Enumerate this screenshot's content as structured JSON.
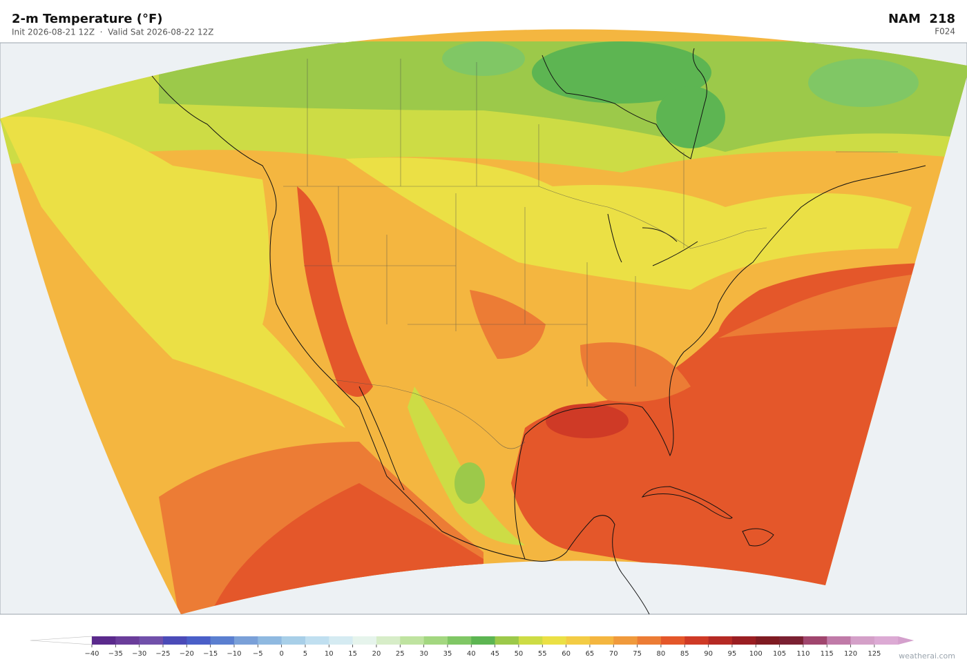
{
  "header": {
    "title": "2-m Temperature  (°F)",
    "subtitle": "Init 2026-08-21 12Z  ·  Valid Sat 2026-08-22 12Z",
    "model": "NAM  218",
    "forecast_hour": "F024"
  },
  "colorbar": {
    "lim": [
      -45,
      135
    ],
    "ticks": [
      {
        "value": -40,
        "label": "−40"
      },
      {
        "value": -35,
        "label": "−35"
      },
      {
        "value": -30,
        "label": "−30"
      },
      {
        "value": -25,
        "label": "−25"
      },
      {
        "value": -20,
        "label": "−20"
      },
      {
        "value": -15,
        "label": "−15"
      },
      {
        "value": -10,
        "label": "−10"
      },
      {
        "value": -5,
        "label": "−5"
      },
      0,
      5,
      10,
      15,
      20,
      25,
      30,
      35,
      40,
      45,
      50,
      55,
      60,
      65,
      70,
      75,
      80,
      85,
      90,
      95,
      100,
      105,
      110,
      115,
      120,
      125
    ],
    "colors": [
      "#5b2a8c",
      "#6a3d9a",
      "#7150aa",
      "#4b4bb8",
      "#4a5fc8",
      "#5b7fd0",
      "#7aa0d8",
      "#8fb9e0",
      "#a8cfe8",
      "#c0dff0",
      "#d5ebf2",
      "#e6f4ec",
      "#d7edc8",
      "#bfe3a0",
      "#a3d780",
      "#80c765",
      "#5db552",
      "#9cc94a",
      "#cddc45",
      "#ebe045",
      "#f3cc45",
      "#f4b640",
      "#f09a3c",
      "#ec7c35",
      "#e4572a",
      "#cf3a26",
      "#b52a24",
      "#9a1e22",
      "#7f1b22",
      "#7a2032",
      "#a0466e",
      "#c07aa8",
      "#d4a0c8",
      "#dcaad4"
    ],
    "under_color": "#ffffff",
    "over_color": "#d4a0cc"
  },
  "credit": "weatherai.com"
}
